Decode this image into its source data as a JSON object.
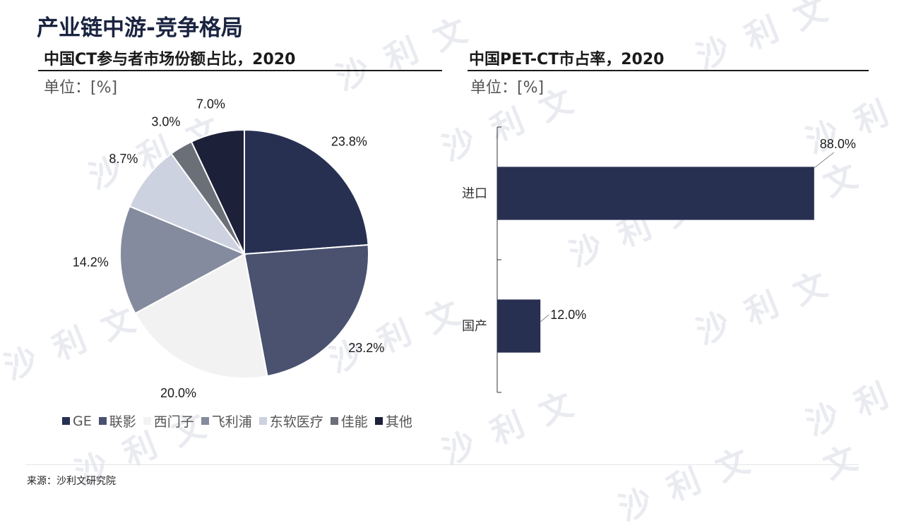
{
  "page_title": "产业链中游-竞争格局",
  "source": "来源：沙利文研究院",
  "watermark": "沙 利 文",
  "chart_data": [
    {
      "type": "pie",
      "title": "中国CT参与者市场份额占比，2020",
      "unit": "单位：[%]",
      "categories": [
        "GE",
        "联影",
        "西门子",
        "飞利浦",
        "东软医疗",
        "佳能",
        "其他"
      ],
      "values": [
        23.8,
        23.2,
        20.0,
        14.2,
        8.7,
        3.0,
        7.0
      ],
      "labels": [
        "23.8%",
        "23.2%",
        "20.0%",
        "14.2%",
        "8.7%",
        "3.0%",
        "7.0%"
      ],
      "colors": [
        "#283052",
        "#4a5270",
        "#f2f2f2",
        "#858b9e",
        "#cdd2e0",
        "#6b6f77",
        "#1c2038"
      ],
      "legend": "bottom"
    },
    {
      "type": "bar",
      "orientation": "horizontal",
      "title": "中国PET-CT市占率，2020",
      "unit": "单位：[%]",
      "categories": [
        "进口",
        "国产"
      ],
      "values": [
        88.0,
        12.0
      ],
      "labels": [
        "88.0%",
        "12.0%"
      ],
      "color": "#283052",
      "xlim": [
        0,
        100
      ]
    }
  ]
}
